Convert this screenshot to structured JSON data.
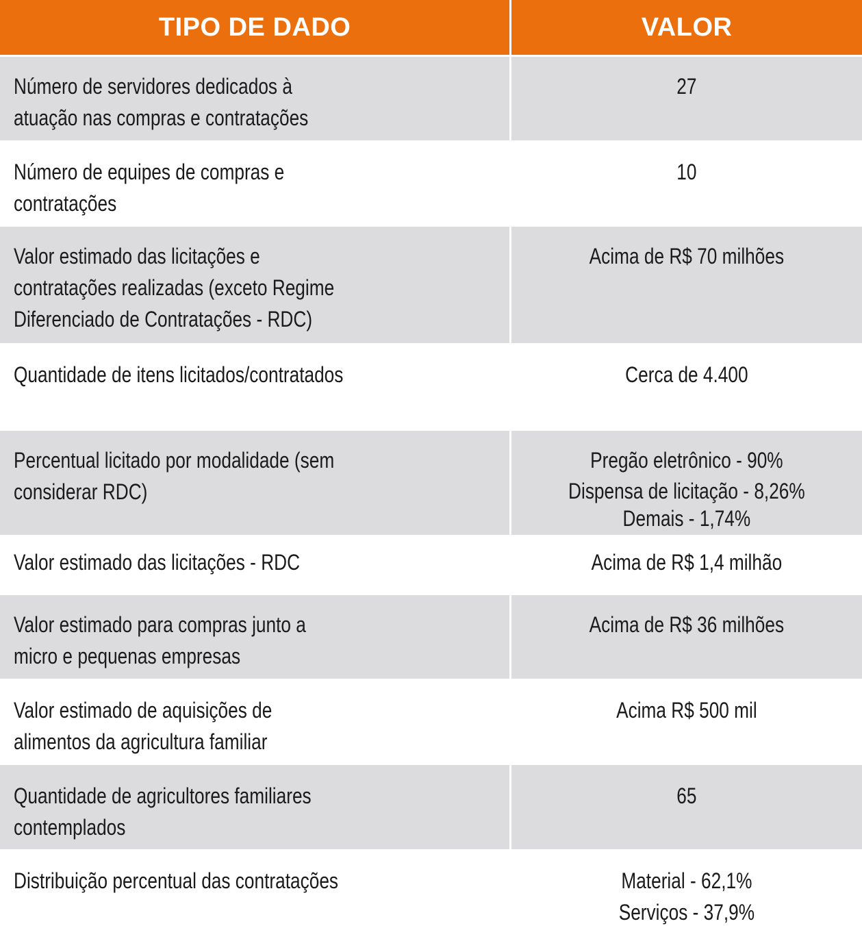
{
  "header": {
    "col1": "TIPO DE DADO",
    "col2": "VALOR"
  },
  "rows": [
    {
      "label": [
        "Número de servidores dedicados à",
        "atuação nas compras e contratações"
      ],
      "value": [
        "27"
      ]
    },
    {
      "label": [
        "Número de equipes de compras e",
        "contratações"
      ],
      "value": [
        "10"
      ]
    },
    {
      "label": [
        "Valor estimado das licitações e",
        "contratações realizadas (exceto Regime",
        "Diferenciado de Contratações - RDC)"
      ],
      "value": [
        "Acima de R$ 70 milhões"
      ]
    },
    {
      "label": [
        "Quantidade de itens licitados/contratados"
      ],
      "value": [
        "Cerca de 4.400"
      ]
    },
    {
      "label": [
        "Percentual licitado por modalidade (sem",
        "considerar RDC)"
      ],
      "value": [
        "Pregão eletrônico - 90%",
        "Dispensa de licitação -  8,26%",
        "Demais - 1,74%"
      ]
    },
    {
      "label": [
        "Valor estimado das licitações - RDC"
      ],
      "value": [
        "Acima de R$ 1,4 milhão"
      ]
    },
    {
      "label": [
        "Valor estimado para compras junto a",
        "micro e pequenas empresas"
      ],
      "value": [
        "Acima de R$ 36 milhões"
      ]
    },
    {
      "label": [
        "Valor estimado de aquisições de",
        "alimentos da agricultura familiar"
      ],
      "value": [
        "Acima R$ 500 mil"
      ]
    },
    {
      "label": [
        "Quantidade de agricultores familiares",
        "contemplados"
      ],
      "value": [
        "65"
      ]
    },
    {
      "label": [
        "Distribuição percentual das contratações"
      ],
      "value": [
        "Material - 62,1%",
        "Serviços - 37,9%"
      ]
    }
  ]
}
